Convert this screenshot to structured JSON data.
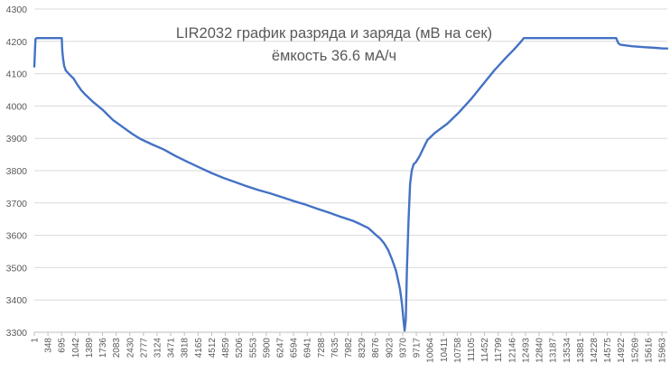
{
  "chart_data": {
    "type": "line",
    "title": "LIR2032 график разряда и заряда (мВ на сек)",
    "subtitle": "ёмкость 36.6 мА/ч",
    "xlabel": "",
    "ylabel": "",
    "ylim": [
      3300,
      4300
    ],
    "xlim": [
      1,
      16100
    ],
    "y_ticks": [
      3300,
      3400,
      3500,
      3600,
      3700,
      3800,
      3900,
      4000,
      4100,
      4200,
      4300
    ],
    "x_tick_labels": [
      "1",
      "348",
      "695",
      "1042",
      "1389",
      "1736",
      "2083",
      "2430",
      "2777",
      "3124",
      "3471",
      "3818",
      "4165",
      "4512",
      "4859",
      "5206",
      "5553",
      "5900",
      "6247",
      "6594",
      "6941",
      "7288",
      "7635",
      "7982",
      "8329",
      "8676",
      "9023",
      "9370",
      "9717",
      "10064",
      "10411",
      "10758",
      "11105",
      "11452",
      "11799",
      "12146",
      "12493",
      "12840",
      "13187",
      "13534",
      "13881",
      "14228",
      "14575",
      "14922",
      "15269",
      "15616",
      "15963"
    ],
    "grid": "horizontal",
    "legend": "none",
    "color": "#4472C4",
    "series": [
      {
        "x": [
          1,
          30,
          60,
          300,
          700,
          710,
          730,
          760,
          800,
          900,
          1000,
          1100,
          1200,
          1300,
          1500,
          1750,
          2000,
          2250,
          2500,
          2700,
          3000,
          3300,
          3600,
          3900,
          4200,
          4500,
          4800,
          5100,
          5400,
          5700,
          6000,
          6300,
          6600,
          6900,
          7200,
          7500,
          7800,
          8100,
          8300,
          8500,
          8700,
          8800,
          8900,
          9000,
          9100,
          9200,
          9300,
          9350,
          9390,
          9420,
          9450,
          9480,
          9520,
          9560,
          9600,
          9650,
          9700,
          9800,
          9900,
          10000,
          10200,
          10500,
          10800,
          11100,
          11400,
          11700,
          12000,
          12200,
          12350,
          12450,
          12500,
          13000,
          13500,
          14000,
          14500,
          14800,
          14850,
          14900,
          15000,
          15200,
          15500,
          15800,
          16000,
          16100
        ],
        "y": [
          4122,
          4207,
          4210,
          4210,
          4210,
          4175,
          4150,
          4125,
          4110,
          4097,
          4085,
          4065,
          4048,
          4035,
          4012,
          3987,
          3957,
          3935,
          3913,
          3898,
          3881,
          3865,
          3845,
          3827,
          3810,
          3793,
          3778,
          3765,
          3752,
          3740,
          3730,
          3718,
          3706,
          3695,
          3682,
          3670,
          3657,
          3645,
          3634,
          3622,
          3600,
          3590,
          3575,
          3555,
          3525,
          3490,
          3435,
          3390,
          3340,
          3305,
          3340,
          3500,
          3650,
          3760,
          3800,
          3820,
          3825,
          3845,
          3870,
          3895,
          3918,
          3945,
          3980,
          4020,
          4065,
          4110,
          4150,
          4175,
          4195,
          4210,
          4210,
          4210,
          4210,
          4210,
          4210,
          4210,
          4195,
          4190,
          4188,
          4185,
          4182,
          4180,
          4178,
          4178
        ]
      }
    ]
  }
}
